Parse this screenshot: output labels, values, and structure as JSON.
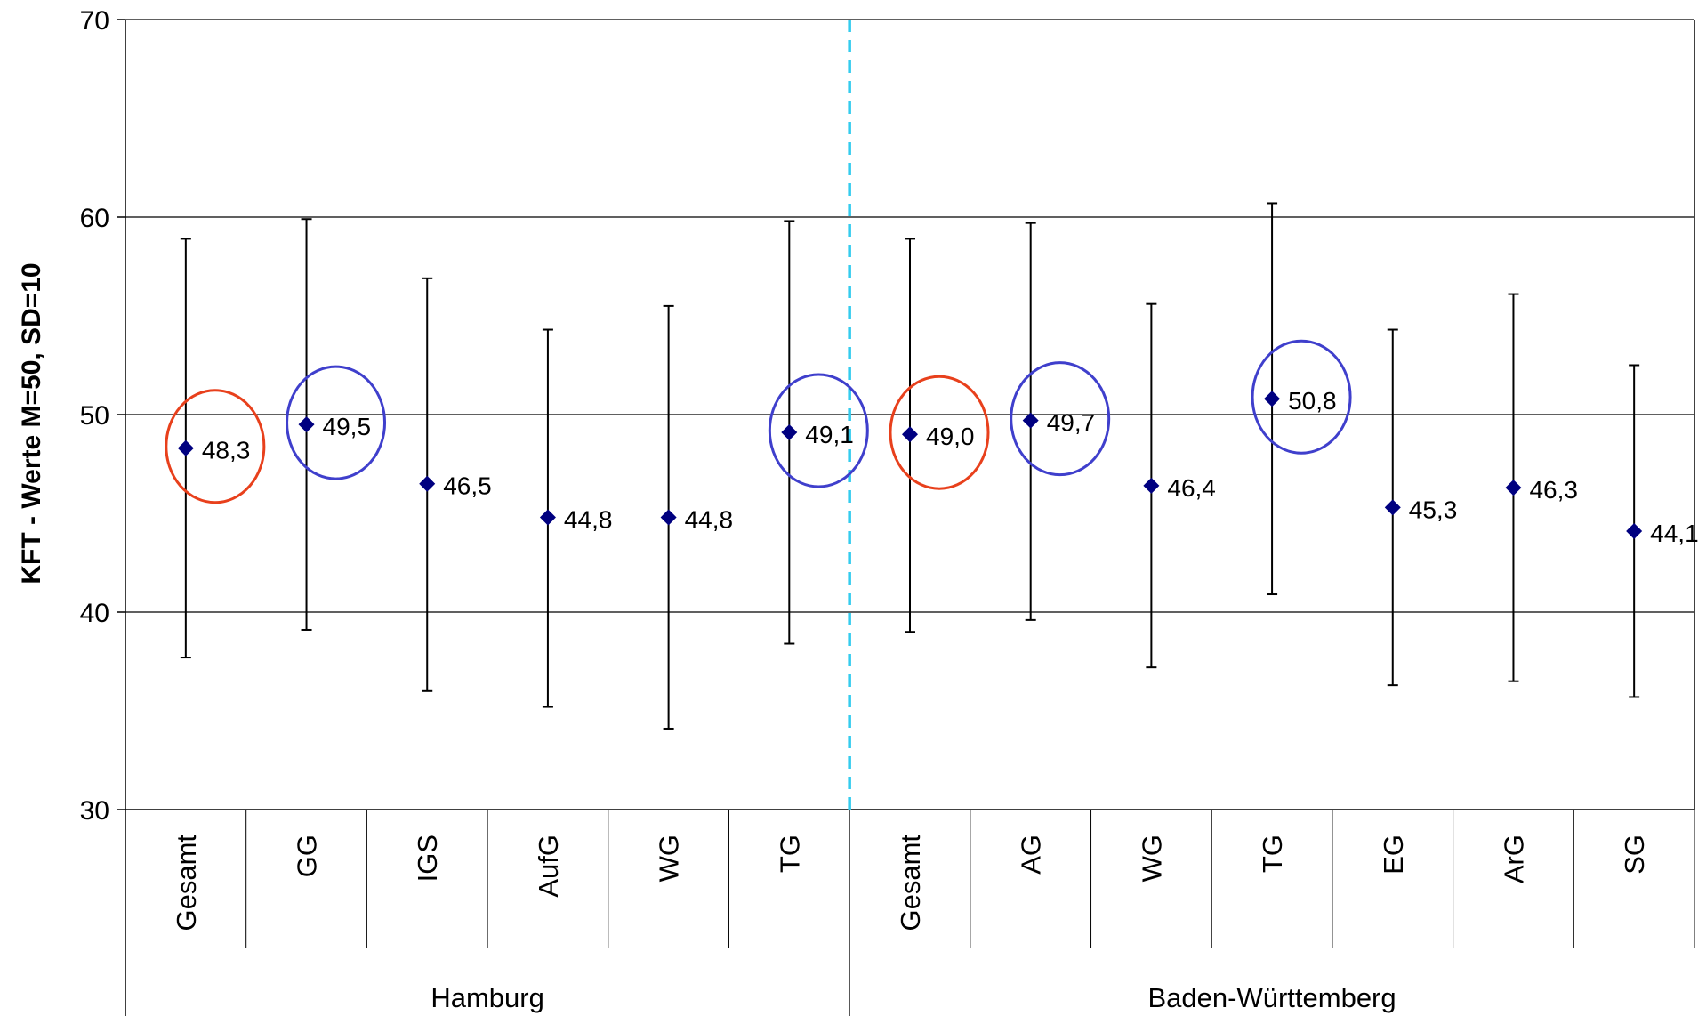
{
  "chart_data": {
    "type": "scatter",
    "ylabel": "KFT - Werte M=50, SD=10",
    "ylim": [
      30,
      70
    ],
    "yticks": [
      "30",
      "40",
      "50",
      "60",
      "70"
    ],
    "grid": true,
    "legend": "none",
    "groups": [
      {
        "label": "Hamburg",
        "categories": [
          "Gesamt",
          "GG",
          "IGS",
          "AufG",
          "WG",
          "TG"
        ]
      },
      {
        "label": "Baden-Württemberg",
        "categories": [
          "Gesamt",
          "AG",
          "WG",
          "TG",
          "EG",
          "ArG",
          "SG"
        ]
      }
    ],
    "points": [
      {
        "category": "Gesamt",
        "group": "Hamburg",
        "mean": 48.3,
        "label": "48,3",
        "low": 37.7,
        "high": 58.9,
        "highlight": "red"
      },
      {
        "category": "GG",
        "group": "Hamburg",
        "mean": 49.5,
        "label": "49,5",
        "low": 39.1,
        "high": 59.9,
        "highlight": "blue"
      },
      {
        "category": "IGS",
        "group": "Hamburg",
        "mean": 46.5,
        "label": "46,5",
        "low": 36.0,
        "high": 56.9,
        "highlight": ""
      },
      {
        "category": "AufG",
        "group": "Hamburg",
        "mean": 44.8,
        "label": "44,8",
        "low": 35.2,
        "high": 54.3,
        "highlight": ""
      },
      {
        "category": "WG",
        "group": "Hamburg",
        "mean": 44.8,
        "label": "44,8",
        "low": 34.1,
        "high": 55.5,
        "highlight": ""
      },
      {
        "category": "TG",
        "group": "Hamburg",
        "mean": 49.1,
        "label": "49,1",
        "low": 38.4,
        "high": 59.8,
        "highlight": "blue"
      },
      {
        "category": "Gesamt",
        "group": "Baden-Württemberg",
        "mean": 49.0,
        "label": "49,0",
        "low": 39.0,
        "high": 58.9,
        "highlight": "red"
      },
      {
        "category": "AG",
        "group": "Baden-Württemberg",
        "mean": 49.7,
        "label": "49,7",
        "low": 39.6,
        "high": 59.7,
        "highlight": "blue"
      },
      {
        "category": "WG",
        "group": "Baden-Württemberg",
        "mean": 46.4,
        "label": "46,4",
        "low": 37.2,
        "high": 55.6,
        "highlight": ""
      },
      {
        "category": "TG",
        "group": "Baden-Württemberg",
        "mean": 50.8,
        "label": "50,8",
        "low": 40.9,
        "high": 60.7,
        "highlight": "blue"
      },
      {
        "category": "EG",
        "group": "Baden-Württemberg",
        "mean": 45.3,
        "label": "45,3",
        "low": 36.3,
        "high": 54.3,
        "highlight": ""
      },
      {
        "category": "ArG",
        "group": "Baden-Württemberg",
        "mean": 46.3,
        "label": "46,3",
        "low": 36.5,
        "high": 56.1,
        "highlight": ""
      },
      {
        "category": "SG",
        "group": "Baden-Württemberg",
        "mean": 44.1,
        "label": "44,1",
        "low": 35.7,
        "high": 52.5,
        "highlight": ""
      }
    ],
    "colors": {
      "marker": "#000080",
      "errorbar": "#000000",
      "gridline": "#000000",
      "divider": "#33CCEE",
      "highlight_red": "#E8401C",
      "highlight_blue": "#3F3FCC"
    }
  }
}
